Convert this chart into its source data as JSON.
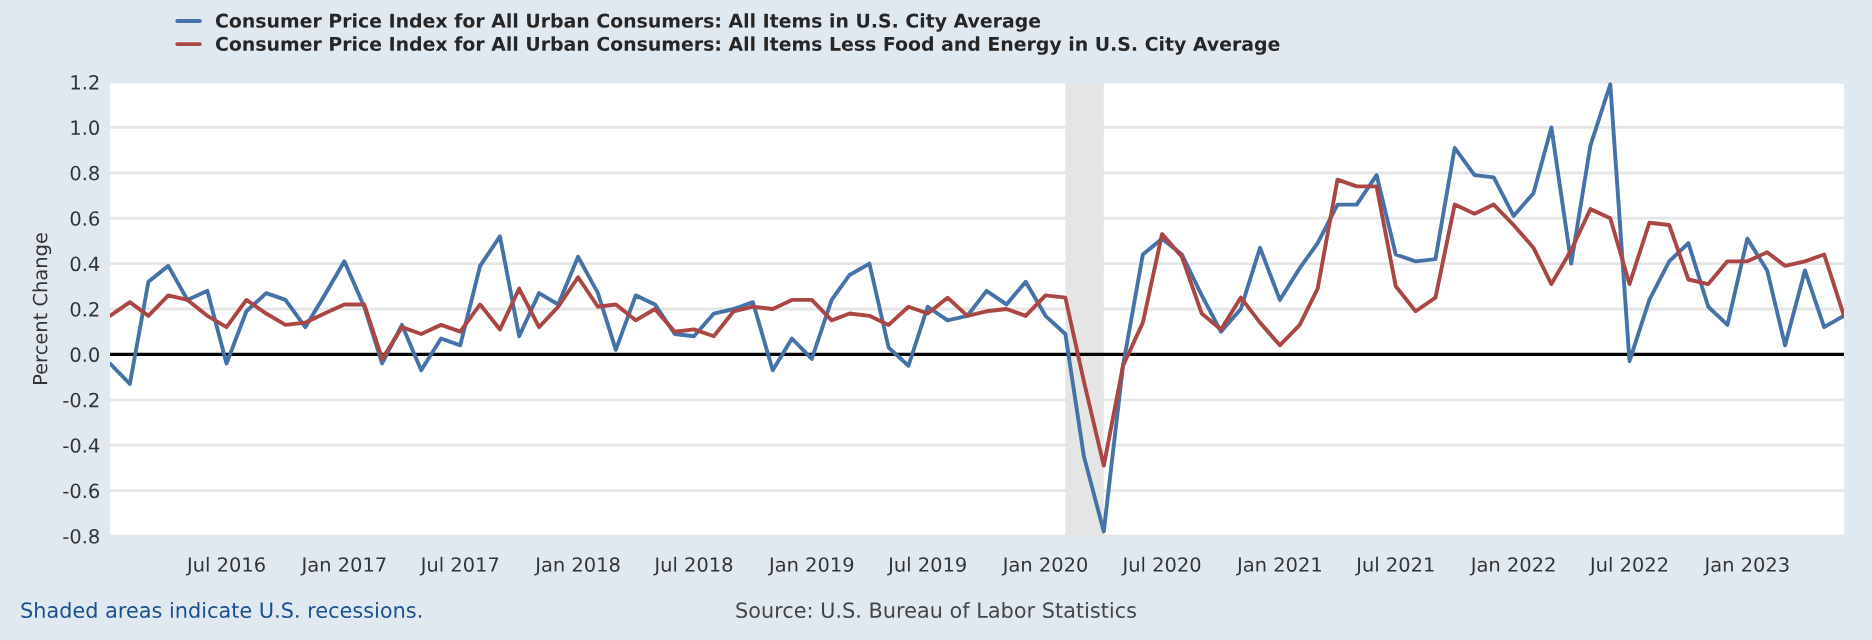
{
  "chart_data": {
    "type": "line",
    "x": [
      "2016-01",
      "2016-02",
      "2016-03",
      "2016-04",
      "2016-05",
      "2016-06",
      "2016-07",
      "2016-08",
      "2016-09",
      "2016-10",
      "2016-11",
      "2016-12",
      "2017-01",
      "2017-02",
      "2017-03",
      "2017-04",
      "2017-05",
      "2017-06",
      "2017-07",
      "2017-08",
      "2017-09",
      "2017-10",
      "2017-11",
      "2017-12",
      "2018-01",
      "2018-02",
      "2018-03",
      "2018-04",
      "2018-05",
      "2018-06",
      "2018-07",
      "2018-08",
      "2018-09",
      "2018-10",
      "2018-11",
      "2018-12",
      "2019-01",
      "2019-02",
      "2019-03",
      "2019-04",
      "2019-05",
      "2019-06",
      "2019-07",
      "2019-08",
      "2019-09",
      "2019-10",
      "2019-11",
      "2019-12",
      "2020-01",
      "2020-02",
      "2020-03",
      "2020-04",
      "2020-05",
      "2020-06",
      "2020-07",
      "2020-08",
      "2020-09",
      "2020-10",
      "2020-11",
      "2020-12",
      "2021-01",
      "2021-02",
      "2021-03",
      "2021-04",
      "2021-05",
      "2021-06",
      "2021-07",
      "2021-08",
      "2021-09",
      "2021-10",
      "2021-11",
      "2021-12",
      "2022-01",
      "2022-02",
      "2022-03",
      "2022-04",
      "2022-05",
      "2022-06",
      "2022-07",
      "2022-08",
      "2022-09",
      "2022-10",
      "2022-11",
      "2022-12",
      "2023-01",
      "2023-02",
      "2023-03",
      "2023-04",
      "2023-05",
      "2023-06"
    ],
    "series": [
      {
        "name": "Consumer Price Index for All Urban Consumers: All Items in U.S. City Average",
        "color": "#4572a7",
        "values": [
          -0.04,
          -0.13,
          0.32,
          0.39,
          0.24,
          0.28,
          -0.04,
          0.19,
          0.27,
          0.24,
          0.12,
          0.26,
          0.41,
          0.21,
          -0.04,
          0.13,
          -0.07,
          0.07,
          0.04,
          0.39,
          0.52,
          0.08,
          0.27,
          0.22,
          0.43,
          0.27,
          0.02,
          0.26,
          0.22,
          0.09,
          0.08,
          0.18,
          0.2,
          0.23,
          -0.07,
          0.07,
          -0.02,
          0.24,
          0.35,
          0.4,
          0.03,
          -0.05,
          0.21,
          0.15,
          0.17,
          0.28,
          0.22,
          0.32,
          0.17,
          0.09,
          -0.45,
          -0.78,
          -0.05,
          0.44,
          0.51,
          0.44,
          0.26,
          0.1,
          0.2,
          0.47,
          0.24,
          0.38,
          0.49,
          0.66,
          0.66,
          0.79,
          0.44,
          0.41,
          0.42,
          0.91,
          0.79,
          0.78,
          0.61,
          0.71,
          1.0,
          0.4,
          0.92,
          1.19,
          -0.03,
          0.24,
          0.41,
          0.49,
          0.21,
          0.13,
          0.51,
          0.37,
          0.04,
          0.37,
          0.12,
          0.17
        ]
      },
      {
        "name": "Consumer Price Index for All Urban Consumers: All Items Less Food and Energy in U.S. City Average",
        "color": "#aa4643",
        "values": [
          0.17,
          0.23,
          0.17,
          0.26,
          0.24,
          0.17,
          0.12,
          0.24,
          0.18,
          0.13,
          0.14,
          0.18,
          0.22,
          0.22,
          -0.02,
          0.12,
          0.09,
          0.13,
          0.1,
          0.22,
          0.11,
          0.29,
          0.12,
          0.21,
          0.34,
          0.21,
          0.22,
          0.15,
          0.2,
          0.1,
          0.11,
          0.08,
          0.19,
          0.21,
          0.2,
          0.24,
          0.24,
          0.15,
          0.18,
          0.17,
          0.13,
          0.21,
          0.18,
          0.25,
          0.17,
          0.19,
          0.2,
          0.17,
          0.26,
          0.25,
          -0.12,
          -0.49,
          -0.05,
          0.14,
          0.53,
          0.43,
          0.18,
          0.11,
          0.25,
          0.14,
          0.04,
          0.13,
          0.29,
          0.77,
          0.74,
          0.74,
          0.3,
          0.19,
          0.25,
          0.66,
          0.62,
          0.66,
          0.57,
          0.47,
          0.31,
          0.46,
          0.64,
          0.6,
          0.31,
          0.58,
          0.57,
          0.33,
          0.31,
          0.41,
          0.41,
          0.45,
          0.39,
          0.41,
          0.44,
          0.17
        ]
      }
    ],
    "xlim": [
      "2016-01",
      "2023-06"
    ],
    "xticks": [
      {
        "value": "2016-07",
        "label": "Jul 2016"
      },
      {
        "value": "2017-01",
        "label": "Jan 2017"
      },
      {
        "value": "2017-07",
        "label": "Jul 2017"
      },
      {
        "value": "2018-01",
        "label": "Jan 2018"
      },
      {
        "value": "2018-07",
        "label": "Jul 2018"
      },
      {
        "value": "2019-01",
        "label": "Jan 2019"
      },
      {
        "value": "2019-07",
        "label": "Jul 2019"
      },
      {
        "value": "2020-01",
        "label": "Jan 2020"
      },
      {
        "value": "2020-07",
        "label": "Jul 2020"
      },
      {
        "value": "2021-01",
        "label": "Jan 2021"
      },
      {
        "value": "2021-07",
        "label": "Jul 2021"
      },
      {
        "value": "2022-01",
        "label": "Jan 2022"
      },
      {
        "value": "2022-07",
        "label": "Jul 2022"
      },
      {
        "value": "2023-01",
        "label": "Jan 2023"
      }
    ],
    "ylim": [
      -0.8,
      1.2
    ],
    "yticks": [
      -0.8,
      -0.6,
      -0.4,
      -0.2,
      {
        "value": 0,
        "label": "0.0"
      },
      0.2,
      0.4,
      0.6,
      0.8,
      {
        "value": 1,
        "label": "1.0"
      },
      1.2
    ],
    "ylabel": "Percent Change",
    "grid": "y",
    "legend": "top",
    "ref_lines": [
      {
        "axis": "y",
        "value": 0,
        "color": "#000000"
      }
    ],
    "bands": [
      {
        "axis": "x",
        "from": "2020-02",
        "to": "2020-04",
        "color": "#e5e5e5"
      }
    ],
    "annotations": [
      "Shaded areas indicate U.S. recessions.",
      "Source: U.S. Bureau of Labor Statistics"
    ]
  }
}
